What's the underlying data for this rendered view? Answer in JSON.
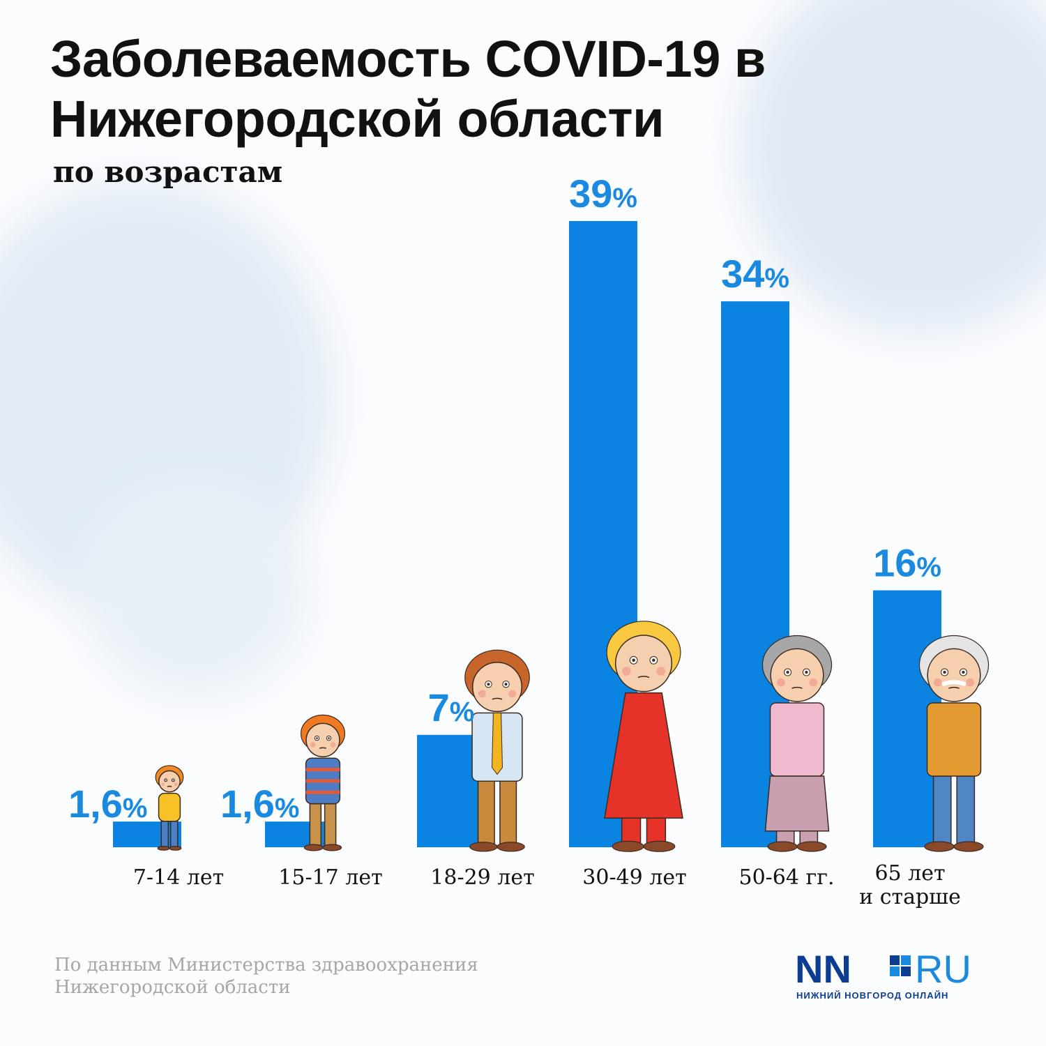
{
  "title_lines": [
    "Заболеваемость COVID-19 в",
    "Нижегородской области"
  ],
  "subtitle": "по возрастам",
  "source_lines": [
    "По данным Министерства здравоохранения",
    "Нижегородской области"
  ],
  "logo": {
    "mark": "NN",
    "suffix": "RU",
    "tagline": "НИЖНИЙ НОВГОРОД ОНЛАЙН"
  },
  "colors": {
    "bar": "#0a84e0",
    "label": "#1a8ae0",
    "text": "#111111",
    "source": "#a6a6a6",
    "logo_dark": "#0d3d91",
    "logo_light": "#1a8ae0"
  },
  "chart_data": {
    "type": "bar",
    "categories": [
      "7-14 лет",
      "15-17 лет",
      "18-29 лет",
      "30-49 лет",
      "50-64 гг.",
      "65 лет\nи старше"
    ],
    "values": [
      1.6,
      1.6,
      7,
      39,
      34,
      16
    ],
    "value_labels": [
      "1,6",
      "1,6",
      "7",
      "39",
      "34",
      "16"
    ],
    "unit": "%",
    "ylim": [
      0,
      39
    ],
    "grid": false,
    "legend": "none",
    "figure_icons": [
      "curly-haired-toddler-icon",
      "freckled-boy-icon",
      "young-man-in-tie-icon",
      "woman-in-red-dress-icon",
      "grandmother-icon",
      "grandfather-icon"
    ]
  }
}
